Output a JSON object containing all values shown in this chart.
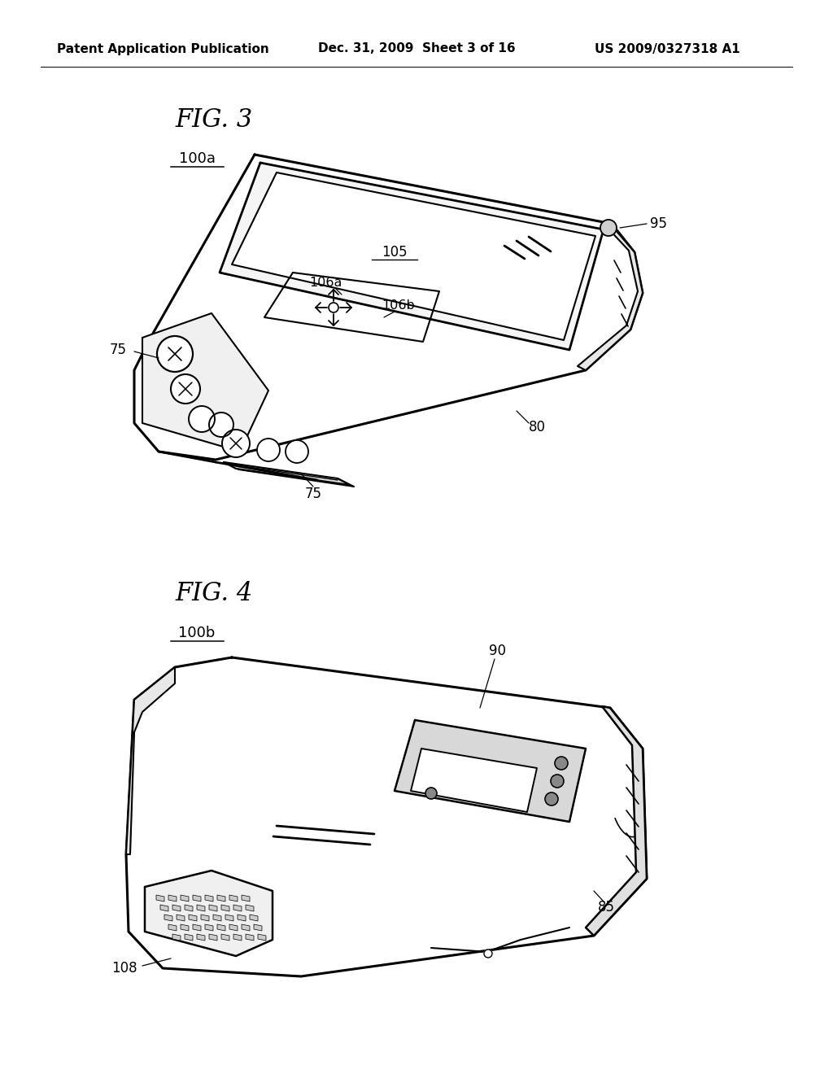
{
  "background_color": "#ffffff",
  "header_left": "Patent Application Publication",
  "header_mid": "Dec. 31, 2009  Sheet 3 of 16",
  "header_right": "US 2009/0327318 A1",
  "line_color": "#000000",
  "annotation_fontsize": 11.5
}
